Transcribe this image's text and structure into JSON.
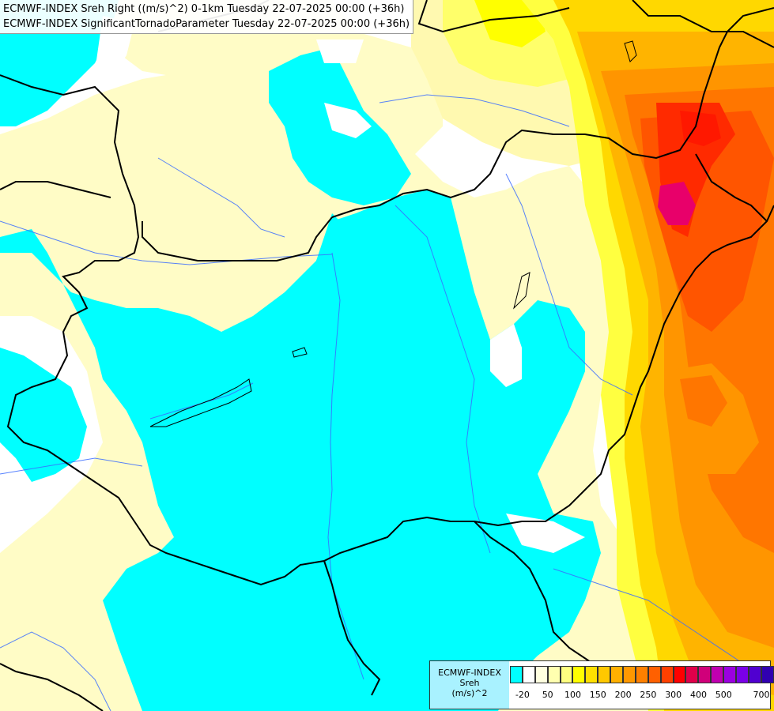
{
  "title": {
    "line1": "ECMWF-INDEX Sreh Right ((m/s)^2) 0-1km Tuesday 22-07-2025 00:00 (+36h)",
    "line2": "ECMWF-INDEX SignificantTornadoParameter Tuesday 22-07-2025 00:00 (+36h)"
  },
  "colors": {
    "cyan": "#00ffff",
    "light_yellow": "#fffcc6",
    "pale_yellow": "#fff8a8",
    "yellow": "#ffff00",
    "gold": "#ffd700",
    "light_orange": "#ffc000",
    "orange": "#ff9a00",
    "dark_orange": "#ff7000",
    "red_orange": "#ff5000",
    "red": "#ff2600",
    "magenta": "#e8006a",
    "border": "#000000",
    "river": "#2a5cff"
  },
  "legend": {
    "title": "ECMWF-INDEX",
    "variable": "Sreh",
    "unit": "(m/s)^2",
    "swatch_colors": [
      "#00ffff",
      "#ffffff",
      "#ffffe0",
      "#ffffb0",
      "#ffff80",
      "#ffff00",
      "#ffe000",
      "#ffc800",
      "#ffb000",
      "#ff9800",
      "#ff8000",
      "#ff6000",
      "#ff4000",
      "#ff0000",
      "#e0004a",
      "#d0007a",
      "#c000b0",
      "#9b00e0",
      "#7a00e8",
      "#5000d0",
      "#3000b0",
      "#000080"
    ],
    "tick_labels": [
      "-20",
      "50",
      "100",
      "150",
      "200",
      "250",
      "300",
      "400",
      "500",
      "700"
    ]
  }
}
